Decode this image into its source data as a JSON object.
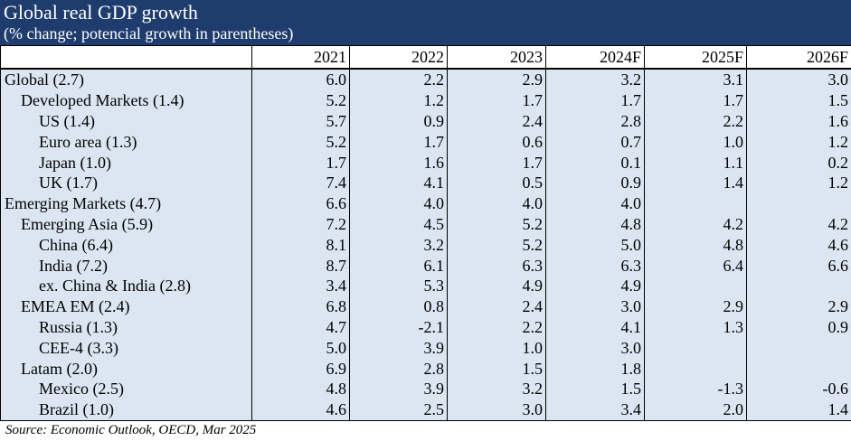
{
  "header": {
    "title": "Global real GDP growth",
    "subtitle": "(% change; potencial growth in parentheses)"
  },
  "table": {
    "columns": [
      "2021",
      "2022",
      "2023",
      "2024F",
      "2025F",
      "2026F"
    ],
    "rows": [
      {
        "label": "Global (2.7)",
        "level": 0,
        "values": [
          "6.0",
          "2.2",
          "2.9",
          "3.2",
          "3.1",
          "3.0"
        ]
      },
      {
        "label": "Developed Markets (1.4)",
        "level": 1,
        "values": [
          "5.2",
          "1.2",
          "1.7",
          "1.7",
          "1.7",
          "1.5"
        ]
      },
      {
        "label": "US (1.4)",
        "level": 2,
        "values": [
          "5.7",
          "0.9",
          "2.4",
          "2.8",
          "2.2",
          "1.6"
        ]
      },
      {
        "label": "Euro area (1.3)",
        "level": 2,
        "values": [
          "5.2",
          "1.7",
          "0.6",
          "0.7",
          "1.0",
          "1.2"
        ]
      },
      {
        "label": "Japan (1.0)",
        "level": 2,
        "values": [
          "1.7",
          "1.6",
          "1.7",
          "0.1",
          "1.1",
          "0.2"
        ]
      },
      {
        "label": "UK (1.7)",
        "level": 2,
        "values": [
          "7.4",
          "4.1",
          "0.5",
          "0.9",
          "1.4",
          "1.2"
        ]
      },
      {
        "label": "Emerging Markets (4.7)",
        "level": 0,
        "values": [
          "6.6",
          "4.0",
          "4.0",
          "4.0",
          "",
          ""
        ]
      },
      {
        "label": "Emerging Asia (5.9)",
        "level": 1,
        "values": [
          "7.2",
          "4.5",
          "5.2",
          "4.8",
          "4.2",
          "4.2"
        ]
      },
      {
        "label": "China (6.4)",
        "level": 2,
        "values": [
          "8.1",
          "3.2",
          "5.2",
          "5.0",
          "4.8",
          "4.6"
        ]
      },
      {
        "label": "India (7.2)",
        "level": 2,
        "values": [
          "8.7",
          "6.1",
          "6.3",
          "6.3",
          "6.4",
          "6.6"
        ]
      },
      {
        "label": "ex. China & India (2.8)",
        "level": 2,
        "values": [
          "3.4",
          "5.3",
          "4.9",
          "4.9",
          "",
          ""
        ]
      },
      {
        "label": "EMEA EM (2.4)",
        "level": 1,
        "values": [
          "6.8",
          "0.8",
          "2.4",
          "3.0",
          "2.9",
          "2.9"
        ]
      },
      {
        "label": "Russia (1.3)",
        "level": 2,
        "values": [
          "4.7",
          "-2.1",
          "2.2",
          "4.1",
          "1.3",
          "0.9"
        ]
      },
      {
        "label": "CEE-4 (3.3)",
        "level": 2,
        "values": [
          "5.0",
          "3.9",
          "1.0",
          "3.0",
          "",
          ""
        ]
      },
      {
        "label": "Latam (2.0)",
        "level": 1,
        "values": [
          "6.9",
          "2.8",
          "1.5",
          "1.8",
          "",
          ""
        ]
      },
      {
        "label": "Mexico (2.5)",
        "level": 2,
        "values": [
          "4.8",
          "3.9",
          "3.2",
          "1.5",
          "-1.3",
          "-0.6"
        ]
      },
      {
        "label": "Brazil (1.0)",
        "level": 2,
        "values": [
          "4.6",
          "2.5",
          "3.0",
          "3.4",
          "2.0",
          "1.4"
        ]
      }
    ]
  },
  "source": "Source:  Economic Outlook, OECD, Mar 2025",
  "colors": {
    "header_bg": "#1f3c6e",
    "header_text": "#ffffff",
    "row_bg": "#dce6f2"
  }
}
